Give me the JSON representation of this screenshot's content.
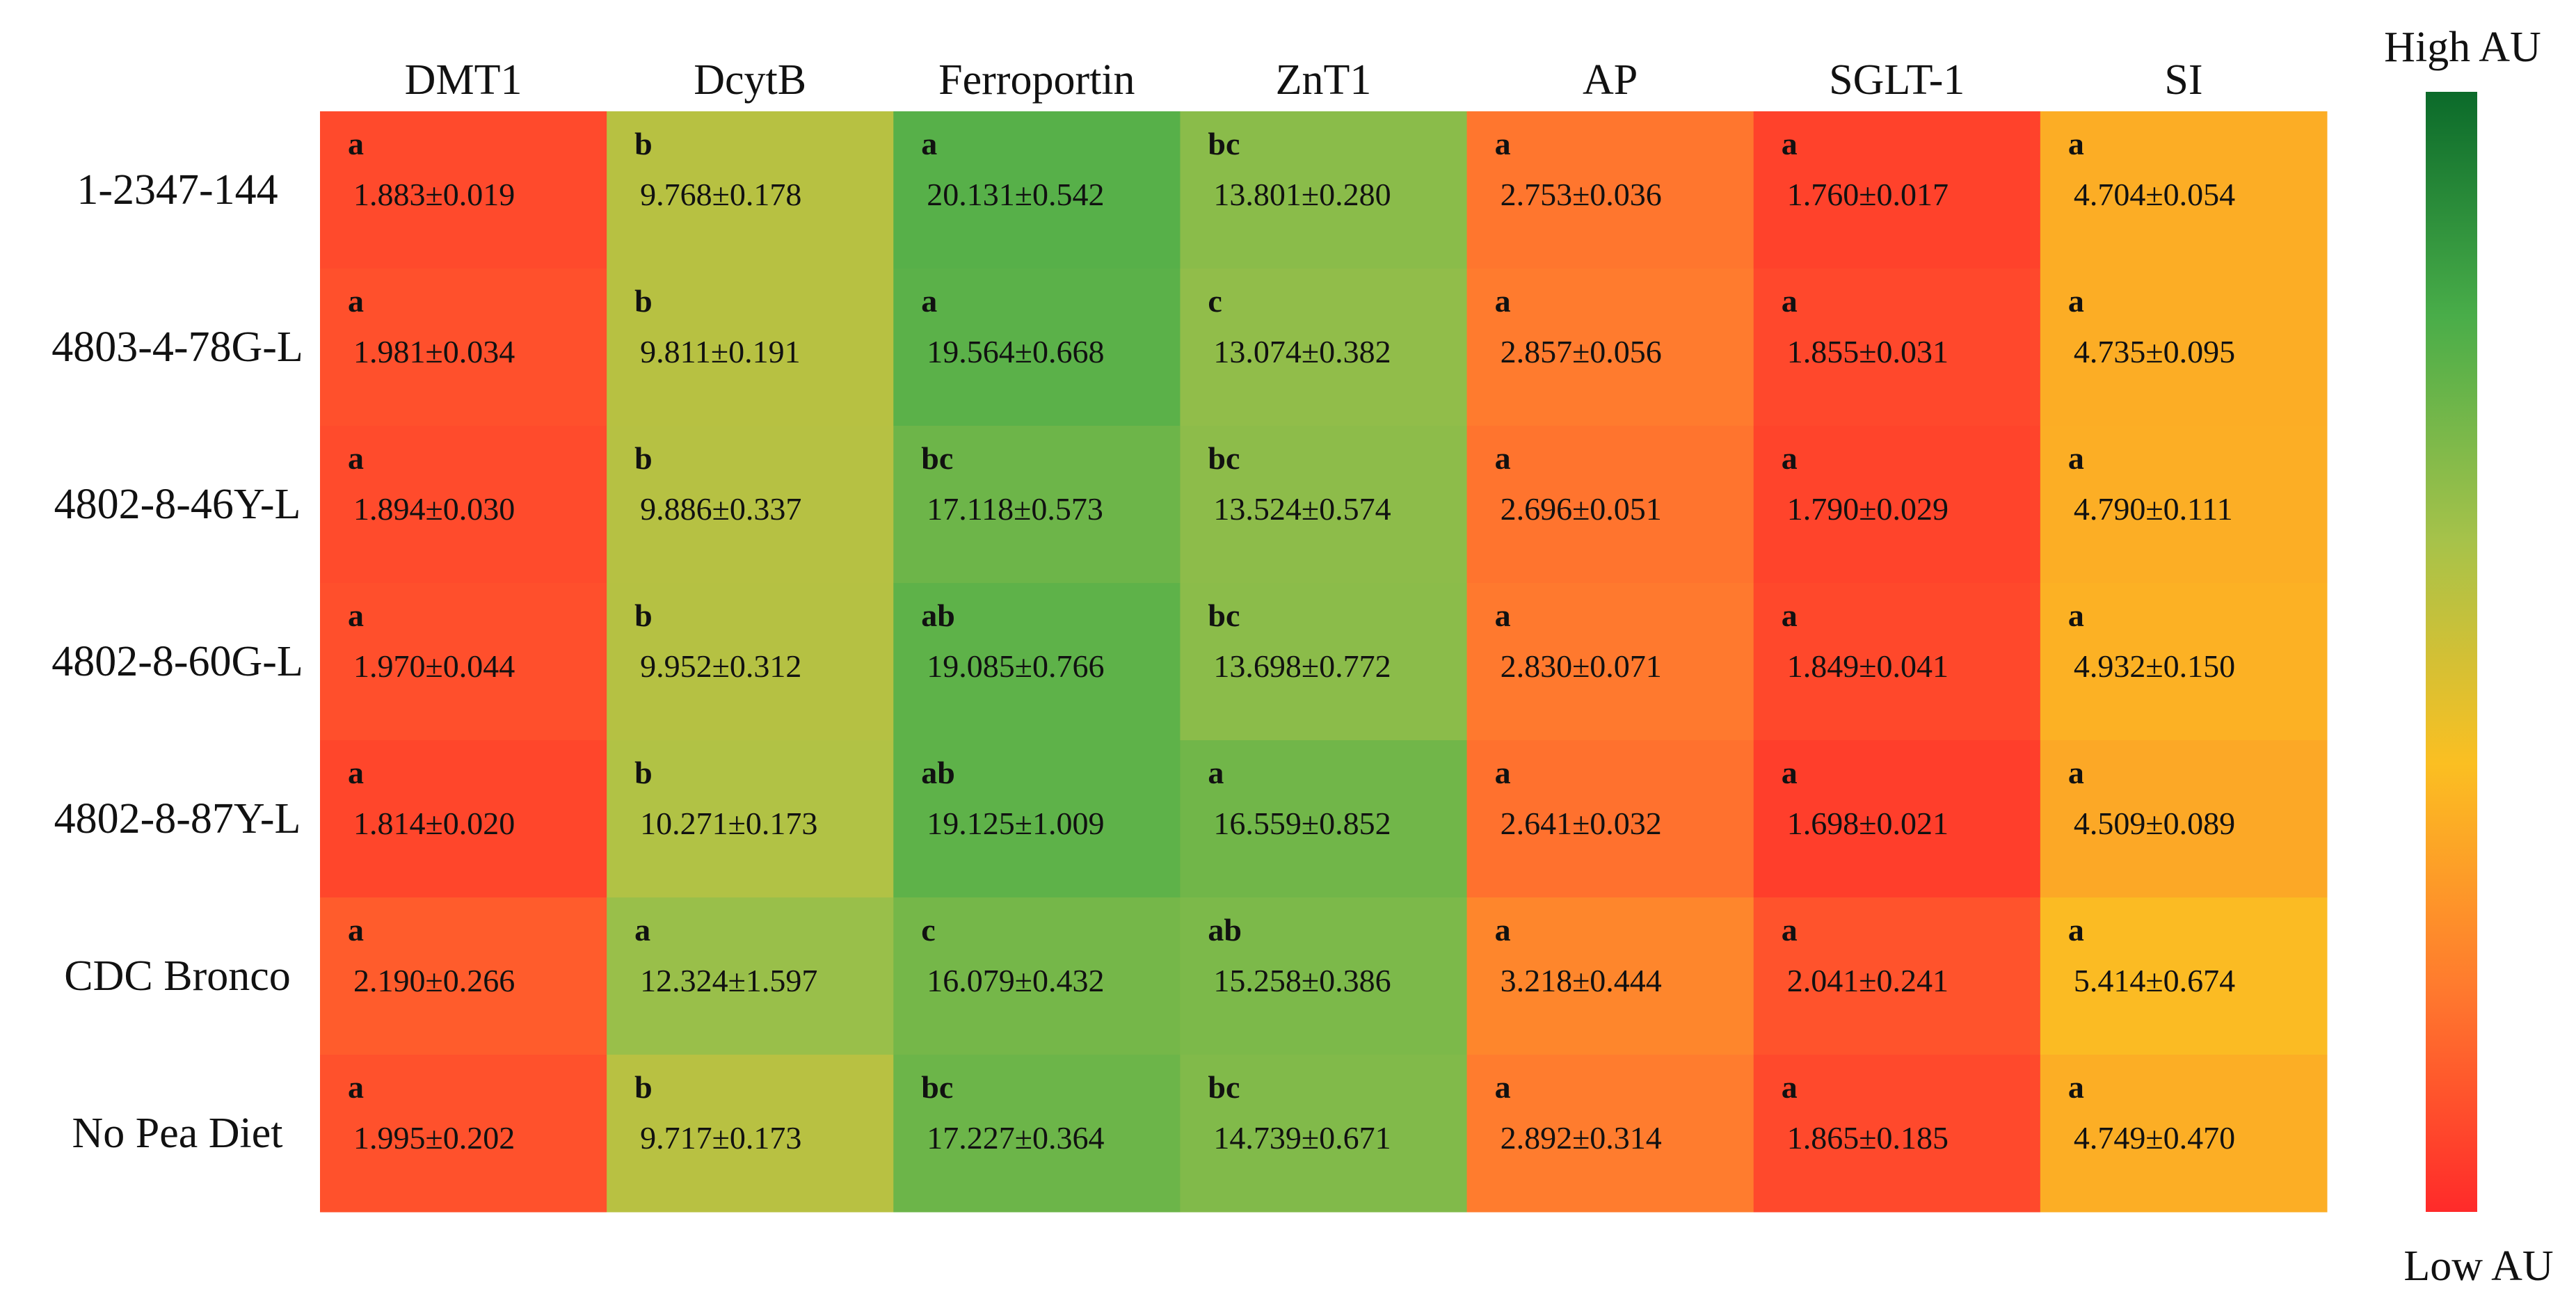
{
  "chart_data": {
    "type": "heatmap",
    "title": "",
    "columns": [
      "DMT1",
      "DcytB",
      "Ferroportin",
      "ZnT1",
      "AP",
      "SGLT-1",
      "SI"
    ],
    "rows": [
      "1-2347-144",
      "4803-4-78G-L",
      "4802-8-46Y-L",
      "4802-8-60G-L",
      "4802-8-87Y-L",
      "CDC Bronco",
      "No Pea Diet"
    ],
    "cells": [
      [
        {
          "letter": "a",
          "text": "1.883±0.019",
          "mean": 1.883,
          "sem": 0.019
        },
        {
          "letter": "b",
          "text": "9.768±0.178",
          "mean": 9.768,
          "sem": 0.178
        },
        {
          "letter": "a",
          "text": "20.131±0.542",
          "mean": 20.131,
          "sem": 0.542
        },
        {
          "letter": "bc",
          "text": "13.801±0.280",
          "mean": 13.801,
          "sem": 0.28
        },
        {
          "letter": "a",
          "text": "2.753±0.036",
          "mean": 2.753,
          "sem": 0.036
        },
        {
          "letter": "a",
          "text": "1.760±0.017",
          "mean": 1.76,
          "sem": 0.017
        },
        {
          "letter": "a",
          "text": "4.704±0.054",
          "mean": 4.704,
          "sem": 0.054
        }
      ],
      [
        {
          "letter": "a",
          "text": "1.981±0.034",
          "mean": 1.981,
          "sem": 0.034
        },
        {
          "letter": "b",
          "text": "9.811±0.191",
          "mean": 9.811,
          "sem": 0.191
        },
        {
          "letter": "a",
          "text": "19.564±0.668",
          "mean": 19.564,
          "sem": 0.668
        },
        {
          "letter": "c",
          "text": "13.074±0.382",
          "mean": 13.074,
          "sem": 0.382
        },
        {
          "letter": "a",
          "text": "2.857±0.056",
          "mean": 2.857,
          "sem": 0.056
        },
        {
          "letter": "a",
          "text": "1.855±0.031",
          "mean": 1.855,
          "sem": 0.031
        },
        {
          "letter": "a",
          "text": "4.735±0.095",
          "mean": 4.735,
          "sem": 0.095
        }
      ],
      [
        {
          "letter": "a",
          "text": "1.894±0.030",
          "mean": 1.894,
          "sem": 0.03
        },
        {
          "letter": "b",
          "text": "9.886±0.337",
          "mean": 9.886,
          "sem": 0.337
        },
        {
          "letter": "bc",
          "text": "17.118±0.573",
          "mean": 17.118,
          "sem": 0.573
        },
        {
          "letter": "bc",
          "text": "13.524±0.574",
          "mean": 13.524,
          "sem": 0.574
        },
        {
          "letter": "a",
          "text": "2.696±0.051",
          "mean": 2.696,
          "sem": 0.051
        },
        {
          "letter": "a",
          "text": "1.790±0.029",
          "mean": 1.79,
          "sem": 0.029
        },
        {
          "letter": "a",
          "text": "4.790±0.111",
          "mean": 4.79,
          "sem": 0.111
        }
      ],
      [
        {
          "letter": "a",
          "text": "1.970±0.044",
          "mean": 1.97,
          "sem": 0.044
        },
        {
          "letter": "b",
          "text": "9.952±0.312",
          "mean": 9.952,
          "sem": 0.312
        },
        {
          "letter": "ab",
          "text": "19.085±0.766",
          "mean": 19.085,
          "sem": 0.766
        },
        {
          "letter": "bc",
          "text": "13.698±0.772",
          "mean": 13.698,
          "sem": 0.772
        },
        {
          "letter": "a",
          "text": "2.830±0.071",
          "mean": 2.83,
          "sem": 0.071
        },
        {
          "letter": "a",
          "text": "1.849±0.041",
          "mean": 1.849,
          "sem": 0.041
        },
        {
          "letter": "a",
          "text": "4.932±0.150",
          "mean": 4.932,
          "sem": 0.15
        }
      ],
      [
        {
          "letter": "a",
          "text": "1.814±0.020",
          "mean": 1.814,
          "sem": 0.02
        },
        {
          "letter": "b",
          "text": "10.271±0.173",
          "mean": 10.271,
          "sem": 0.173
        },
        {
          "letter": "ab",
          "text": "19.125±1.009",
          "mean": 19.125,
          "sem": 1.009
        },
        {
          "letter": "a",
          "text": "16.559±0.852",
          "mean": 16.559,
          "sem": 0.852
        },
        {
          "letter": "a",
          "text": "2.641±0.032",
          "mean": 2.641,
          "sem": 0.032
        },
        {
          "letter": "a",
          "text": "1.698±0.021",
          "mean": 1.698,
          "sem": 0.021
        },
        {
          "letter": "a",
          "text": "4.509±0.089",
          "mean": 4.509,
          "sem": 0.089
        }
      ],
      [
        {
          "letter": "a",
          "text": "2.190±0.266",
          "mean": 2.19,
          "sem": 0.266
        },
        {
          "letter": "a",
          "text": "12.324±1.597",
          "mean": 12.324,
          "sem": 1.597
        },
        {
          "letter": "c",
          "text": "16.079±0.432",
          "mean": 16.079,
          "sem": 0.432
        },
        {
          "letter": "ab",
          "text": "15.258±0.386",
          "mean": 15.258,
          "sem": 0.386
        },
        {
          "letter": "a",
          "text": "3.218±0.444",
          "mean": 3.218,
          "sem": 0.444
        },
        {
          "letter": "a",
          "text": "2.041±0.241",
          "mean": 2.041,
          "sem": 0.241
        },
        {
          "letter": "a",
          "text": "5.414±0.674",
          "mean": 5.414,
          "sem": 0.674
        }
      ],
      [
        {
          "letter": "a",
          "text": "1.995±0.202",
          "mean": 1.995,
          "sem": 0.202
        },
        {
          "letter": "b",
          "text": "9.717±0.173",
          "mean": 9.717,
          "sem": 0.173
        },
        {
          "letter": "bc",
          "text": "17.227±0.364",
          "mean": 17.227,
          "sem": 0.364
        },
        {
          "letter": "bc",
          "text": "14.739±0.671",
          "mean": 14.739,
          "sem": 0.671
        },
        {
          "letter": "a",
          "text": "2.892±0.314",
          "mean": 2.892,
          "sem": 0.314
        },
        {
          "letter": "a",
          "text": "1.865±0.185",
          "mean": 1.865,
          "sem": 0.185
        },
        {
          "letter": "a",
          "text": "4.749±0.470",
          "mean": 4.749,
          "sem": 0.47
        }
      ]
    ],
    "color_scale": {
      "low_label": "Low AU",
      "high_label": "High AU",
      "stops": [
        "#ff2a2a",
        "#ff7a2e",
        "#fbbf22",
        "#a6c24a",
        "#49ad49",
        "#0b6a2a"
      ]
    }
  }
}
